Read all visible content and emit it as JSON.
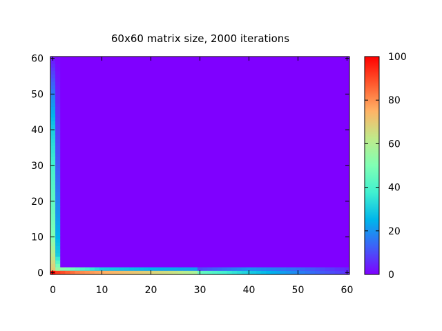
{
  "chart_data": {
    "type": "heatmap",
    "title": "60x60 matrix size, 2000 iterations",
    "xlabel": "",
    "ylabel": "",
    "xlim": [
      -0.5,
      60.5
    ],
    "ylim": [
      -0.5,
      60.5
    ],
    "x_ticks": [
      "0",
      "10",
      "20",
      "30",
      "40",
      "50",
      "60"
    ],
    "y_ticks": [
      "0",
      "10",
      "20",
      "30",
      "40",
      "50",
      "60"
    ],
    "grid": false,
    "colorbar": {
      "range": [
        0,
        100
      ],
      "ticks": [
        "0",
        "20",
        "40",
        "60",
        "80",
        "100"
      ],
      "palette": "rainbow",
      "colors": [
        "#7f00ff",
        "#3f5ff8",
        "#00b5eb",
        "#40f0d0",
        "#80ffb4",
        "#c0ea8a",
        "#ffb366",
        "#ff5a2e",
        "#ff0000"
      ]
    },
    "background_value": 0,
    "profiles": {
      "bottom_row": [
        {
          "x": 0,
          "value": 100
        },
        {
          "x": 1,
          "value": 92
        },
        {
          "x": 5,
          "value": 82
        },
        {
          "x": 10,
          "value": 76
        },
        {
          "x": 20,
          "value": 68
        },
        {
          "x": 25,
          "value": 64
        },
        {
          "x": 29,
          "value": 58
        },
        {
          "x": 30,
          "value": 45
        },
        {
          "x": 35,
          "value": 38
        },
        {
          "x": 40,
          "value": 30
        },
        {
          "x": 45,
          "value": 24
        },
        {
          "x": 50,
          "value": 18
        },
        {
          "x": 55,
          "value": 12
        },
        {
          "x": 59,
          "value": 8
        },
        {
          "x": 60,
          "value": 5
        }
      ],
      "second_row": [
        {
          "x": 1,
          "value": 55
        },
        {
          "x": 10,
          "value": 30
        },
        {
          "x": 20,
          "value": 25
        },
        {
          "x": 29,
          "value": 22
        },
        {
          "x": 30,
          "value": 10
        },
        {
          "x": 40,
          "value": 20
        },
        {
          "x": 50,
          "value": 15
        },
        {
          "x": 60,
          "value": 5
        }
      ],
      "left_column": [
        {
          "y": 0,
          "value": 100
        },
        {
          "y": 1,
          "value": 70
        },
        {
          "y": 5,
          "value": 62
        },
        {
          "y": 10,
          "value": 50
        },
        {
          "y": 20,
          "value": 44
        },
        {
          "y": 30,
          "value": 38
        },
        {
          "y": 40,
          "value": 30
        },
        {
          "y": 48,
          "value": 20
        },
        {
          "y": 55,
          "value": 10
        },
        {
          "y": 60,
          "value": 3
        }
      ],
      "second_column": [
        {
          "y": 1,
          "value": 55
        },
        {
          "y": 5,
          "value": 30
        },
        {
          "y": 10,
          "value": 25
        },
        {
          "y": 20,
          "value": 18
        },
        {
          "y": 30,
          "value": 12
        },
        {
          "y": 40,
          "value": 8
        },
        {
          "y": 50,
          "value": 4
        },
        {
          "y": 60,
          "value": 1
        }
      ]
    }
  }
}
